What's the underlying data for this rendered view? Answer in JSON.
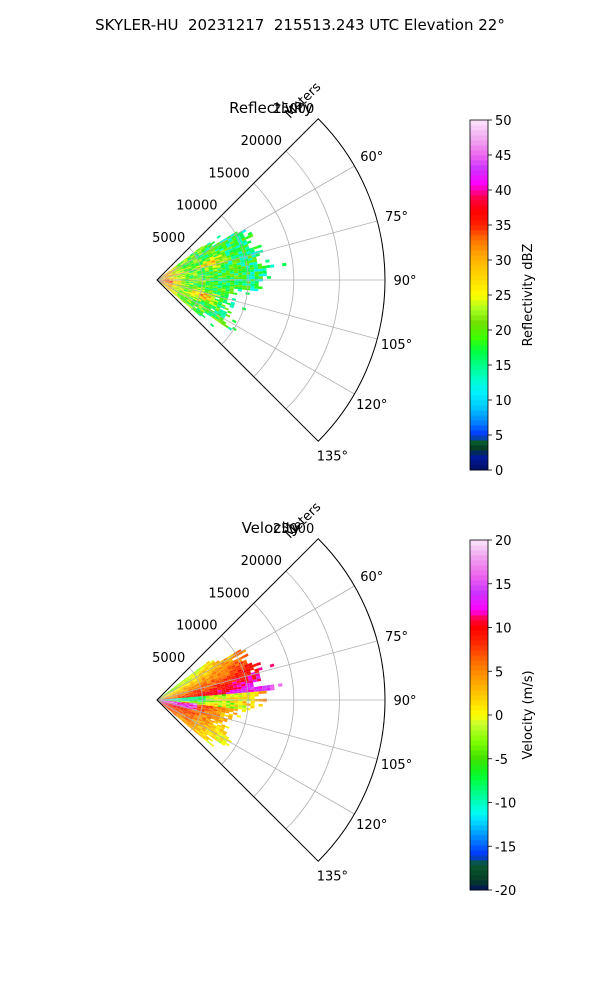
{
  "figure": {
    "suptitle": "SKYLER-HU  20231217  215513.243 UTC Elevation 22°"
  },
  "chart_data": [
    {
      "type": "heatmap",
      "projection": "polar-sector",
      "title": "Reflectivity",
      "range_label": "Meters",
      "range_ticks": [
        "5000",
        "10000",
        "15000",
        "20000",
        "25000"
      ],
      "range_tick_values": [
        5000,
        10000,
        15000,
        20000,
        25000
      ],
      "range_max": 25000,
      "azimuth_limits_deg": [
        45,
        135
      ],
      "azimuth_ticks": [
        "60°",
        "75°",
        "90°",
        "105°",
        "120°",
        "135°"
      ],
      "azimuth_tick_values": [
        60,
        75,
        90,
        105,
        120,
        135
      ],
      "grid": true,
      "colorbar": {
        "label": "Reflectivity dBZ",
        "vmin": 0,
        "vmax": 50,
        "ticks": [
          "0",
          "5",
          "10",
          "15",
          "20",
          "25",
          "30",
          "35",
          "40",
          "45",
          "50"
        ],
        "tick_values": [
          0,
          5,
          10,
          15,
          20,
          25,
          30,
          35,
          40,
          45,
          50
        ]
      }
    },
    {
      "type": "heatmap",
      "projection": "polar-sector",
      "title": "Velocity",
      "range_label": "Meters",
      "range_ticks": [
        "5000",
        "10000",
        "15000",
        "20000",
        "25000"
      ],
      "range_tick_values": [
        5000,
        10000,
        15000,
        20000,
        25000
      ],
      "range_max": 25000,
      "azimuth_limits_deg": [
        45,
        135
      ],
      "azimuth_ticks": [
        "60°",
        "75°",
        "90°",
        "105°",
        "120°",
        "135°"
      ],
      "azimuth_tick_values": [
        60,
        75,
        90,
        105,
        120,
        135
      ],
      "grid": true,
      "colorbar": {
        "label": "Velocity (m/s)",
        "vmin": -20,
        "vmax": 20,
        "ticks": [
          "-20",
          "-15",
          "-10",
          "-5",
          "0",
          "5",
          "10",
          "15",
          "20"
        ],
        "tick_values": [
          -20,
          -15,
          -10,
          -5,
          0,
          5,
          10,
          15,
          20
        ]
      }
    }
  ]
}
